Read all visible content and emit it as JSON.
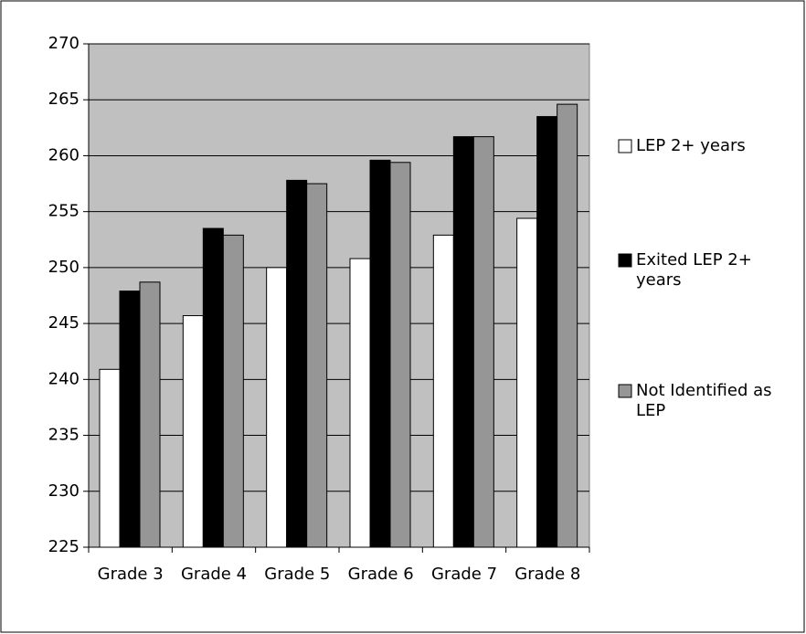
{
  "chart_data": {
    "type": "bar",
    "categories": [
      "Grade 3",
      "Grade 4",
      "Grade 5",
      "Grade 6",
      "Grade 7",
      "Grade 8"
    ],
    "series": [
      {
        "name": "LEP 2+ years",
        "color": "#ffffff",
        "values": [
          240.9,
          245.7,
          250.0,
          250.8,
          252.9,
          254.4
        ]
      },
      {
        "name": "Exited LEP 2+ years",
        "color": "#000000",
        "values": [
          247.9,
          253.5,
          257.8,
          259.6,
          261.7,
          263.5
        ]
      },
      {
        "name": "Not Identified as LEP",
        "color": "#969696",
        "values": [
          248.7,
          252.9,
          257.5,
          259.4,
          261.7,
          264.6
        ]
      }
    ],
    "ylim": [
      225,
      270
    ],
    "yticks": [
      225,
      230,
      235,
      240,
      245,
      250,
      255,
      260,
      265,
      270
    ],
    "grid": true,
    "legend": "right",
    "plot_background": "#c0c0c0"
  }
}
